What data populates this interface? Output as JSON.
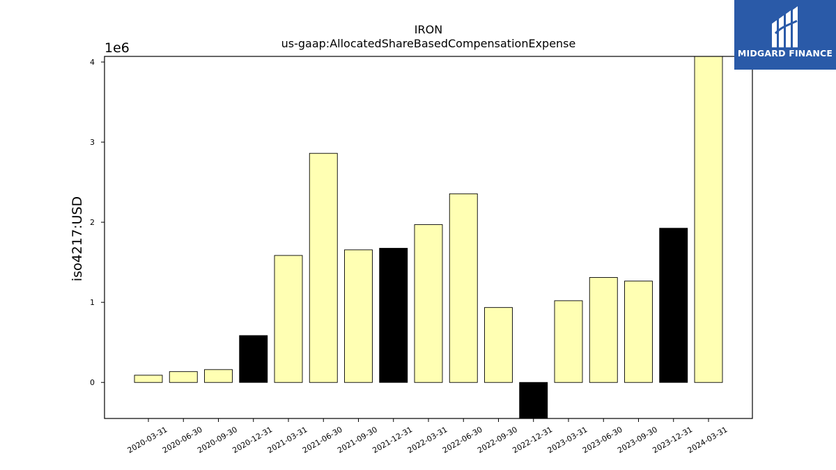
{
  "chart_data": {
    "type": "bar",
    "title": "IRON",
    "subtitle": "us-gaap:AllocatedShareBasedCompensationExpense",
    "ylabel": "iso4217:USD",
    "xlabel": "",
    "y_offset_label": "1e6",
    "y_scale": 1000000,
    "ylim": [
      -450000,
      4070000
    ],
    "yticks": [
      0,
      1,
      2,
      3,
      4
    ],
    "grid": false,
    "legend": "none",
    "categories": [
      "2020-03-31",
      "2020-06-30",
      "2020-09-30",
      "2020-12-31",
      "2021-03-31",
      "2021-06-30",
      "2021-09-30",
      "2021-12-31",
      "2022-03-31",
      "2022-06-30",
      "2022-09-30",
      "2022-12-31",
      "2023-03-31",
      "2023-06-30",
      "2023-09-30",
      "2023-12-31",
      "2024-03-31"
    ],
    "values": [
      90000,
      135000,
      160000,
      585000,
      1585000,
      2860000,
      1655000,
      1675000,
      1970000,
      2355000,
      935000,
      -460000,
      1020000,
      1310000,
      1265000,
      1925000,
      4070000
    ],
    "bar_colors": [
      "#ffffb3",
      "#ffffb3",
      "#ffffb3",
      "#000000",
      "#ffffb3",
      "#ffffb3",
      "#ffffb3",
      "#000000",
      "#ffffb3",
      "#ffffb3",
      "#ffffb3",
      "#000000",
      "#ffffb3",
      "#ffffb3",
      "#ffffb3",
      "#000000",
      "#ffffb3"
    ]
  },
  "logo": {
    "text": "MIDGARD FINANCE",
    "icon": "midgard-logo-icon",
    "background": "#2a5aa8"
  }
}
